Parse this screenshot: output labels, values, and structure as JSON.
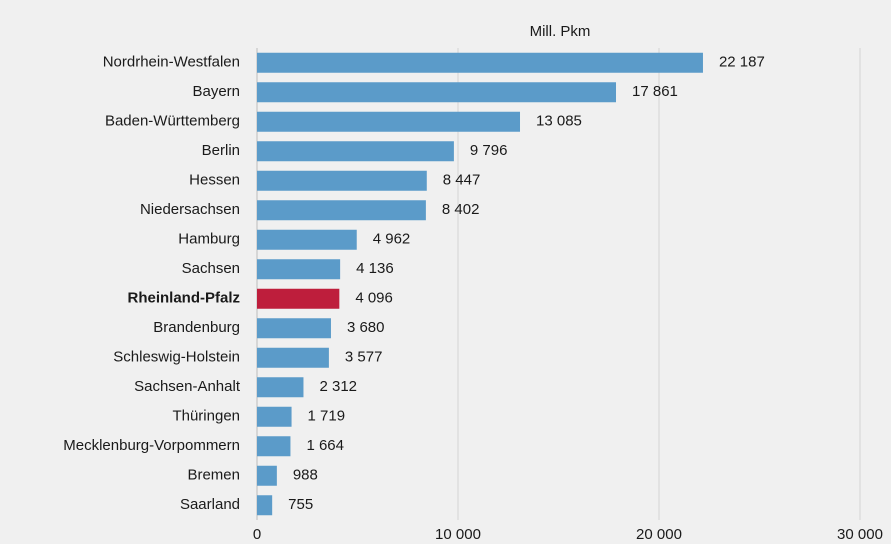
{
  "chart_data": {
    "type": "barh",
    "title": "Mill. Pkm",
    "categories": [
      "Nordrhein-Westfalen",
      "Bayern",
      "Baden-Württemberg",
      "Berlin",
      "Hessen",
      "Niedersachsen",
      "Hamburg",
      "Sachsen",
      "Rheinland-Pfalz",
      "Brandenburg",
      "Schleswig-Holstein",
      "Sachsen-Anhalt",
      "Thüringen",
      "Mecklenburg-Vorpommern",
      "Bremen",
      "Saarland"
    ],
    "values": [
      22187,
      17861,
      13085,
      9796,
      8447,
      8402,
      4962,
      4136,
      4096,
      3680,
      3577,
      2312,
      1719,
      1664,
      988,
      755
    ],
    "value_labels": [
      "22 187",
      "17 861",
      "13 085",
      "9 796",
      "8 447",
      "8 402",
      "4 962",
      "4 136",
      "4 096",
      "3 680",
      "3 577",
      "2 312",
      "1 719",
      "1 664",
      "988",
      "755"
    ],
    "color": "#5b9bc9",
    "colors": [
      "#5b9bc9",
      "#5b9bc9",
      "#5b9bc9",
      "#5b9bc9",
      "#5b9bc9",
      "#5b9bc9",
      "#5b9bc9",
      "#5b9bc9",
      "#be1e3c",
      "#5b9bc9",
      "#5b9bc9",
      "#5b9bc9",
      "#5b9bc9",
      "#5b9bc9",
      "#5b9bc9",
      "#5b9bc9"
    ],
    "label_color": "#2a7db5",
    "xlim": [
      0,
      30000
    ],
    "xticks": [
      0,
      {
        "value": 10000,
        "label": "10 000"
      },
      {
        "value": 20000,
        "label": "20 000"
      },
      {
        "value": 30000,
        "label": "30 000"
      }
    ],
    "grid": true
  }
}
